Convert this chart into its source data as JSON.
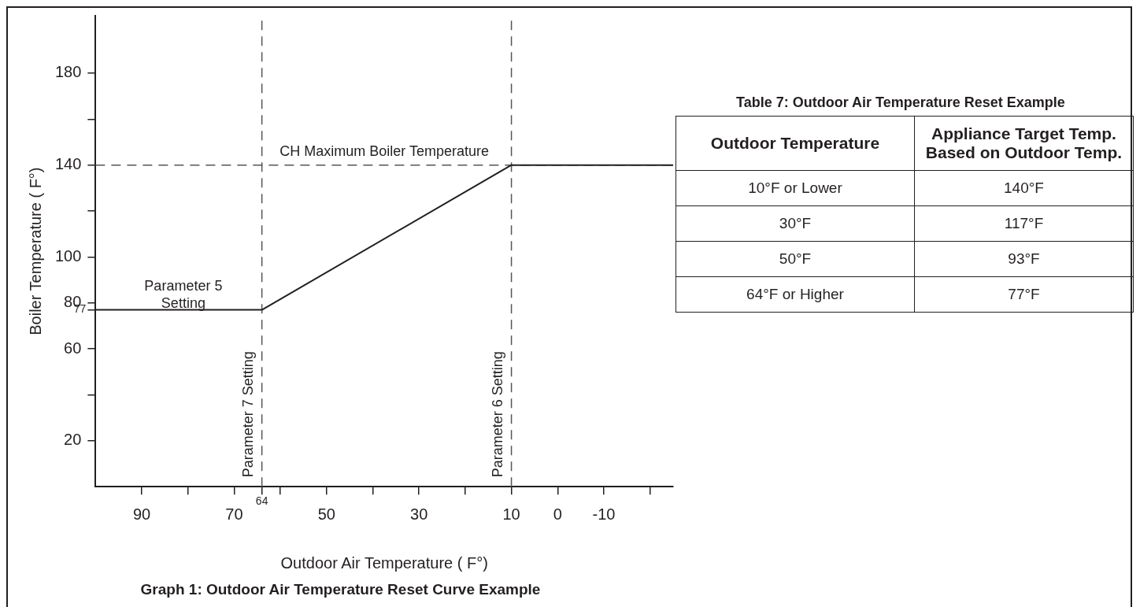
{
  "chart_data": {
    "type": "line",
    "title": "Graph 1: Outdoor Air Temperature Reset Curve Example",
    "xlabel": "Outdoor Air Temperature ( F°)",
    "ylabel": "Boiler Temperature ( F°)",
    "x": [
      100,
      64,
      10,
      -25
    ],
    "series": [
      {
        "color": "#231f20",
        "values": [
          77,
          77,
          140,
          140
        ]
      }
    ],
    "xlim": [
      100,
      -25
    ],
    "xticks": [
      90,
      {
        "value": 80,
        "label": null
      },
      70,
      {
        "value": 64,
        "label": null
      },
      {
        "value": 60,
        "label": null
      },
      50,
      {
        "value": 40,
        "label": null
      },
      30,
      {
        "value": 20,
        "label": null
      },
      10,
      0,
      -10,
      {
        "value": -20,
        "label": null
      }
    ],
    "ylim": [
      0,
      205
    ],
    "yticks": [
      20,
      {
        "value": 40,
        "label": null
      },
      60,
      {
        "value": 77,
        "label": null
      },
      80,
      100,
      {
        "value": 120,
        "label": null
      },
      140,
      {
        "value": 160,
        "label": null
      },
      180
    ],
    "ref_lines": [
      {
        "axis": "y",
        "value": 140,
        "label": "CH Maximum Boiler Temperature",
        "color": "#555555",
        "line_style": "dashed"
      },
      {
        "axis": "x",
        "value": 64,
        "label": "Parameter 7 Setting",
        "color": "#555555",
        "line_style": "dashed"
      },
      {
        "axis": "x",
        "value": 10,
        "label": "Parameter 6 Setting",
        "color": "#555555",
        "line_style": "dashed"
      }
    ],
    "annotations": [
      {
        "text": "Parameter 5 Setting",
        "x": 81,
        "y": 77
      },
      {
        "text": "64",
        "x": 64,
        "y": 0
      },
      {
        "text": "77",
        "x": 100,
        "y": 77
      },
      "Table 7: Outdoor Air Temperature Reset Example",
      "Outdoor Temperature",
      "Appliance Target Temp. Based on Outdoor Temp.",
      "10°F or Lower",
      "140°F",
      "30°F",
      "117°F",
      "50°F",
      "93°F",
      "64°F or Higher",
      "77°F"
    ],
    "grid": false,
    "legend": false,
    "marker": "none",
    "line_style": "solid"
  }
}
